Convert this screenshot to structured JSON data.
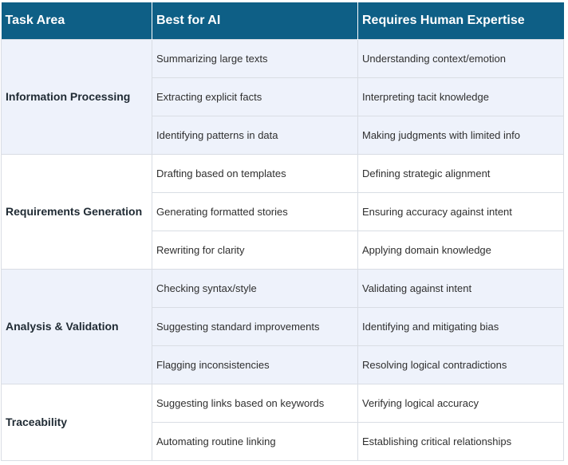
{
  "headers": [
    "Task Area",
    "Best for AI",
    "Requires Human Expertise"
  ],
  "groups": [
    {
      "area": "Information Processing",
      "rows": [
        {
          "ai": "Summarizing large texts",
          "human": "Understanding context/emotion"
        },
        {
          "ai": "Extracting explicit facts",
          "human": "Interpreting tacit knowledge"
        },
        {
          "ai": "Identifying patterns in data",
          "human": "Making judgments with limited info"
        }
      ]
    },
    {
      "area": "Requirements Generation",
      "rows": [
        {
          "ai": "Drafting based on templates",
          "human": "Defining strategic alignment"
        },
        {
          "ai": "Generating formatted stories",
          "human": "Ensuring accuracy against intent"
        },
        {
          "ai": "Rewriting for clarity",
          "human": "Applying domain knowledge"
        }
      ]
    },
    {
      "area": "Analysis & Validation",
      "rows": [
        {
          "ai": "Checking syntax/style",
          "human": "Validating against intent"
        },
        {
          "ai": "Suggesting standard improvements",
          "human": "Identifying and mitigating bias"
        },
        {
          "ai": "Flagging inconsistencies",
          "human": "Resolving logical contradictions"
        }
      ]
    },
    {
      "area": "Traceability",
      "rows": [
        {
          "ai": "Suggesting links based on keywords",
          "human": "Verifying logical accuracy"
        },
        {
          "ai": "Automating routine linking",
          "human": "Establishing critical relationships"
        }
      ]
    }
  ],
  "colors": {
    "header_bg": "#0e5f86",
    "shaded_row_bg": "#eef2fb",
    "plain_row_bg": "#ffffff",
    "border": "#d9dde4"
  }
}
